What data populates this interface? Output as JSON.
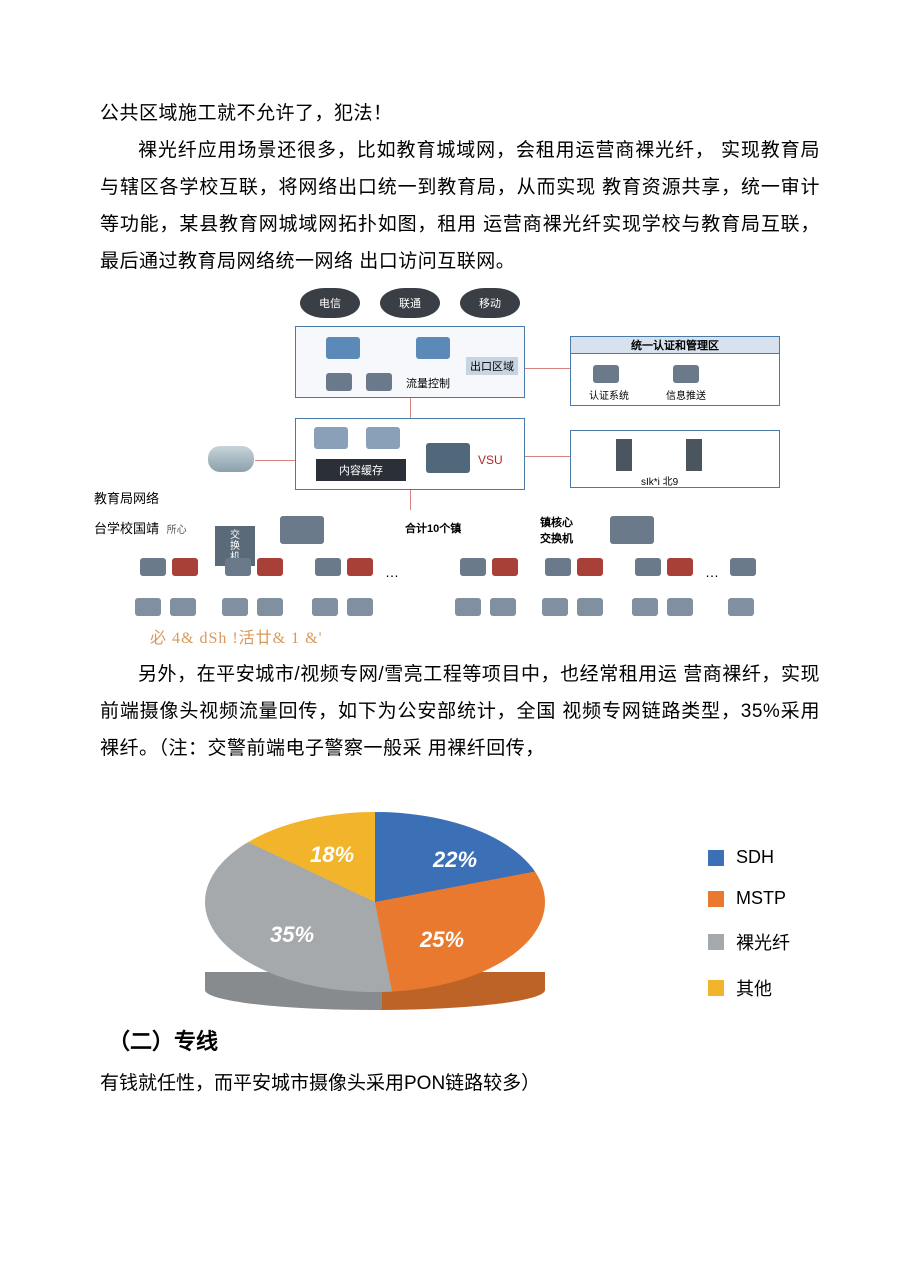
{
  "para1": "公共区域施工就不允许了，犯法！",
  "para2": "裸光纤应用场景还很多，比如教育城域网，会租用运营商裸光纤， 实现教育局与辖区各学校互联，将网络出口统一到教育局，从而实现 教育资源共享，统一审计等功能，某县教育网城域网拓扑如图，租用 运营商裸光纤实现学校与教育局互联，最后通过教育局网络统一网络 出口访问互联网。",
  "para3": "另外，在平安城市/视频专网/雪亮工程等项目中，也经常租用运 营商裸纤，实现前端摄像头视频流量回传，如下为公安部统计，全国 视频专网链路类型，35%采用裸纤。（注：交警前端电子警察一般采 用裸纤回传，",
  "section_title": "（二）专线",
  "closing": "有钱就任性，而平安城市摄像头采用PON链路较多）",
  "diagram": {
    "clouds": [
      "电信",
      "联通",
      "移动"
    ],
    "cloud_color": "#3a3f46",
    "exit_label": "出口区域",
    "flow_label": "流量控制",
    "auth_title": "统一认证和管理区",
    "auth_sys": "认证系统",
    "info_push": "信息推送",
    "cache_label": "内容缓存",
    "vsu_label": "VSU",
    "server_label": "sIk*i 北9",
    "side_label_1": "教育局网络",
    "side_label_2": "台学校国靖",
    "side_sub": "所心",
    "switch_label": "交\n换\n机",
    "town_total": "合计10个镇",
    "town_core": "镇核心\n交换机",
    "watermark": "必  4&  dSh !活廿&  1 &'",
    "box_border": "#4a7aa8",
    "box_bg": "#e8eef5",
    "device_blue": "#5b8ab8",
    "device_dark": "#6a7a8a",
    "device_red": "#a84038",
    "link_color": "#d98080"
  },
  "pie": {
    "slices": [
      {
        "label": "22%",
        "value": 22,
        "color": "#3b6fb6",
        "name": "SDH"
      },
      {
        "label": "25%",
        "value": 25,
        "color": "#e8792f",
        "name": "MSTP"
      },
      {
        "label": "35%",
        "value": 35,
        "color": "#a5a9ac",
        "name": "裸光纤"
      },
      {
        "label": "18%",
        "value": 18,
        "color": "#f2b42a",
        "name": "其他"
      }
    ],
    "label_fontsize": 22,
    "legend_fontsize": 18,
    "side_darken": 0.82
  }
}
